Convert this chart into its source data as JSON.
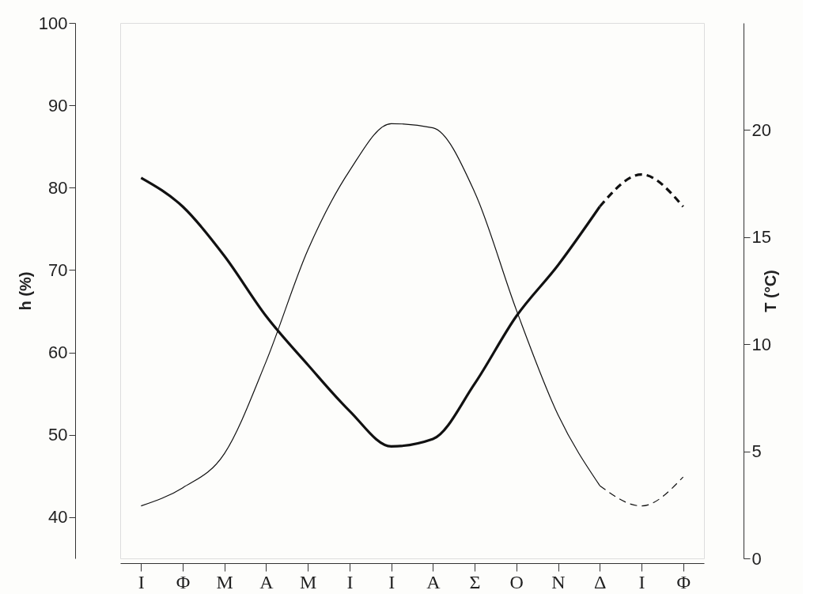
{
  "chart_data": {
    "type": "line",
    "ylabel": "h (%)",
    "y2label": "T (°C)",
    "categories": [
      "Ι",
      "Φ",
      "Μ",
      "Α",
      "Μ",
      "Ι",
      "Ι",
      "Α",
      "Σ",
      "Ο",
      "Ν",
      "Δ",
      "Ι",
      "Φ"
    ],
    "series": [
      {
        "color": "#111111",
        "line_style": "solid",
        "values": [
          81.2,
          77.7,
          71.7,
          64.4,
          58.5,
          52.9,
          48.6,
          49.5,
          56.2,
          64.4,
          70.6,
          77.7,
          null,
          null
        ]
      },
      {
        "color": "#111111",
        "line_style": "dashed",
        "values": [
          null,
          null,
          null,
          null,
          null,
          null,
          null,
          null,
          null,
          null,
          null,
          77.7,
          81.6,
          77.7
        ]
      },
      {
        "color": "#111111",
        "line_style": "solid",
        "axis": "y2",
        "values": [
          2.45,
          3.3,
          4.9,
          9.2,
          14.4,
          18.1,
          20.3,
          20.1,
          17.1,
          11.6,
          6.7,
          3.4,
          null,
          null
        ]
      },
      {
        "color": "#111111",
        "line_style": "dashed",
        "axis": "y2",
        "values": [
          null,
          null,
          null,
          null,
          null,
          null,
          null,
          null,
          null,
          null,
          null,
          3.4,
          2.45,
          3.8
        ]
      }
    ],
    "ylim": [
      35,
      100
    ],
    "yticks": [
      40,
      50,
      60,
      70,
      80,
      90,
      100
    ],
    "y2lim": [
      0,
      25
    ],
    "y2ticks": [
      0,
      5,
      10,
      15,
      20
    ],
    "grid": false,
    "marker": "none"
  }
}
